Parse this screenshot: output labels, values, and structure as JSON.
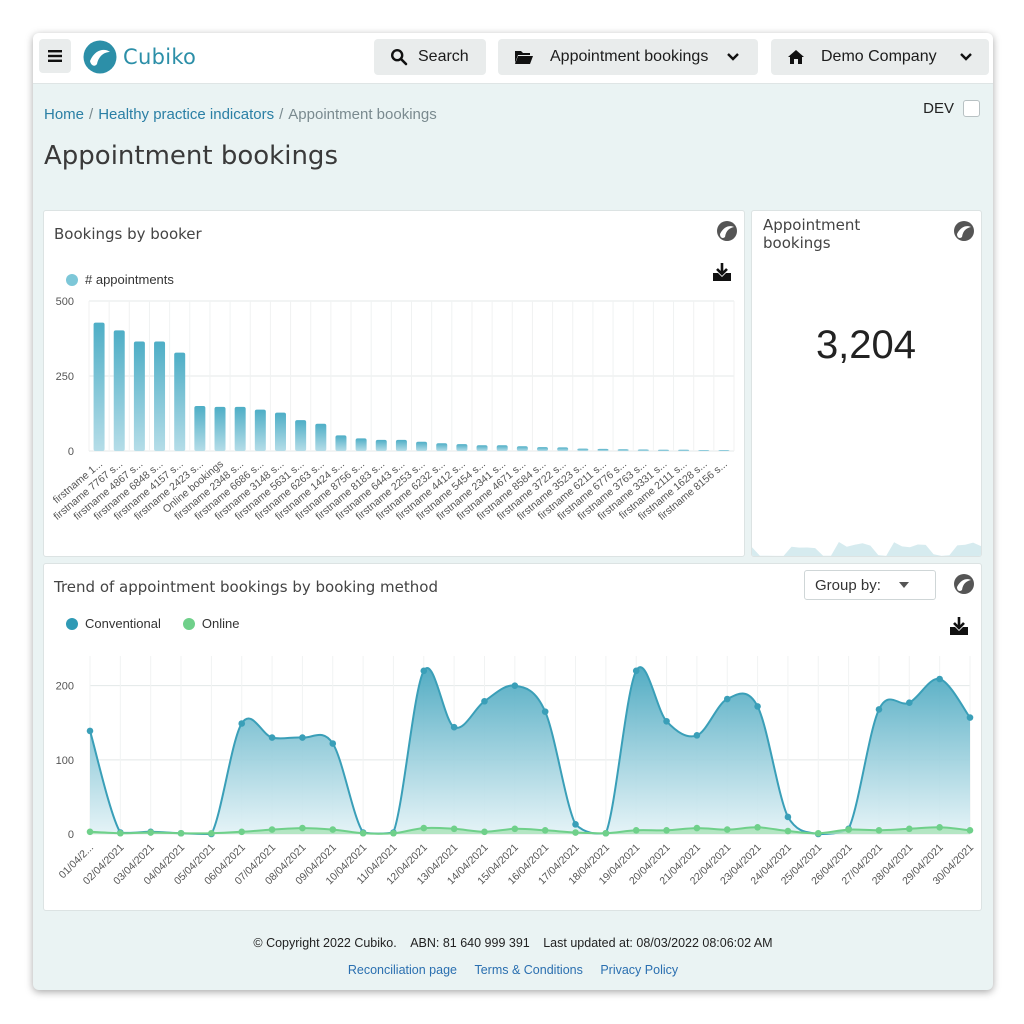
{
  "topbar": {
    "menu_icon": "hamburger-icon",
    "logo_text": "Cubiko",
    "search_label": "Search",
    "report_label": "Appointment bookings",
    "company_label": "Demo Company"
  },
  "breadcrumb": {
    "home": "Home",
    "section": "Healthy practice indicators",
    "current": "Appointment bookings",
    "separator": "/"
  },
  "dev_label": "DEV",
  "page_title": "Appointment bookings",
  "booker_card": {
    "title": "Bookings by booker",
    "legend": "# appointments",
    "color": "#5fb8cc"
  },
  "kpi_card": {
    "title_line1": "Appointment",
    "title_line2": "bookings",
    "value": "3,204"
  },
  "trend_card": {
    "title": "Trend of appointment bookings by booking method",
    "group_by_label": "Group by:",
    "colors": {
      "conventional": "#3aa0b8",
      "online": "#6fd08a"
    }
  },
  "chart_data": [
    {
      "type": "bar",
      "categories": [
        "firstname 1...",
        "firstname 7767 s...",
        "firstname 4867 s...",
        "firstname 6848 s...",
        "firstname 4157 s...",
        "firstname 2423 s...",
        "Online bookings",
        "firstname 2348 s...",
        "firstname 6686 s...",
        "firstname 3148 s...",
        "firstname 5631 s...",
        "firstname 6263 s...",
        "firstname 1424 s...",
        "firstname 8756 s...",
        "firstname 8183 s...",
        "firstname 6443 s...",
        "firstname 2253 s...",
        "firstname 6232 s...",
        "firstname 4412 s...",
        "firstname 5454 s...",
        "firstname 2341 s...",
        "firstname 4671 s...",
        "firstname 8584 s...",
        "firstname 3722 s...",
        "firstname 3523 s...",
        "firstname 6211 s...",
        "firstname 6776 s...",
        "firstname 3763 s...",
        "firstname 3331 s...",
        "firstname 2111 s...",
        "firstname 1628 s...",
        "firstname 8156 s..."
      ],
      "series": [
        {
          "name": "# appointments",
          "values": [
            428,
            402,
            365,
            365,
            328,
            150,
            147,
            147,
            138,
            128,
            103,
            91,
            52,
            42,
            37,
            37,
            31,
            26,
            23,
            19,
            19,
            16,
            13,
            12,
            8,
            7,
            6,
            5,
            4,
            4,
            3,
            3
          ]
        }
      ],
      "yticks": [
        "0",
        "250",
        "500"
      ],
      "ylim": [
        0,
        500
      ],
      "title": "Bookings by booker"
    },
    {
      "type": "area",
      "x": [
        "01/04/2...",
        "02/04/2021",
        "03/04/2021",
        "04/04/2021",
        "05/04/2021",
        "06/04/2021",
        "07/04/2021",
        "08/04/2021",
        "09/04/2021",
        "10/04/2021",
        "11/04/2021",
        "12/04/2021",
        "13/04/2021",
        "14/04/2021",
        "15/04/2021",
        "16/04/2021",
        "17/04/2021",
        "18/04/2021",
        "19/04/2021",
        "20/04/2021",
        "21/04/2021",
        "22/04/2021",
        "23/04/2021",
        "24/04/2021",
        "25/04/2021",
        "26/04/2021",
        "27/04/2021",
        "28/04/2021",
        "29/04/2021",
        "30/04/2021"
      ],
      "series": [
        {
          "name": "Conventional",
          "values": [
            139,
            2,
            3,
            1,
            0,
            149,
            130,
            130,
            122,
            2,
            2,
            220,
            144,
            179,
            200,
            165,
            13,
            1,
            220,
            152,
            133,
            182,
            172,
            23,
            0,
            7,
            168,
            177,
            209,
            157
          ]
        },
        {
          "name": "Online",
          "values": [
            3,
            1,
            2,
            1,
            1,
            3,
            6,
            8,
            6,
            1,
            1,
            8,
            7,
            3,
            7,
            5,
            2,
            1,
            5,
            5,
            8,
            6,
            9,
            4,
            1,
            6,
            5,
            7,
            9,
            5
          ]
        }
      ],
      "yticks": [
        "0",
        "100",
        "200"
      ],
      "ylim": [
        0,
        240
      ],
      "title": "Trend of appointment bookings by booking method"
    }
  ],
  "footer": {
    "copyright": "© Copyright 2022 Cubiko.",
    "abn": "ABN: 81 640 999 391",
    "updated": "Last updated at: 08/03/2022 08:06:02 AM",
    "links": [
      "Reconciliation page",
      "Terms & Conditions",
      "Privacy Policy"
    ]
  }
}
